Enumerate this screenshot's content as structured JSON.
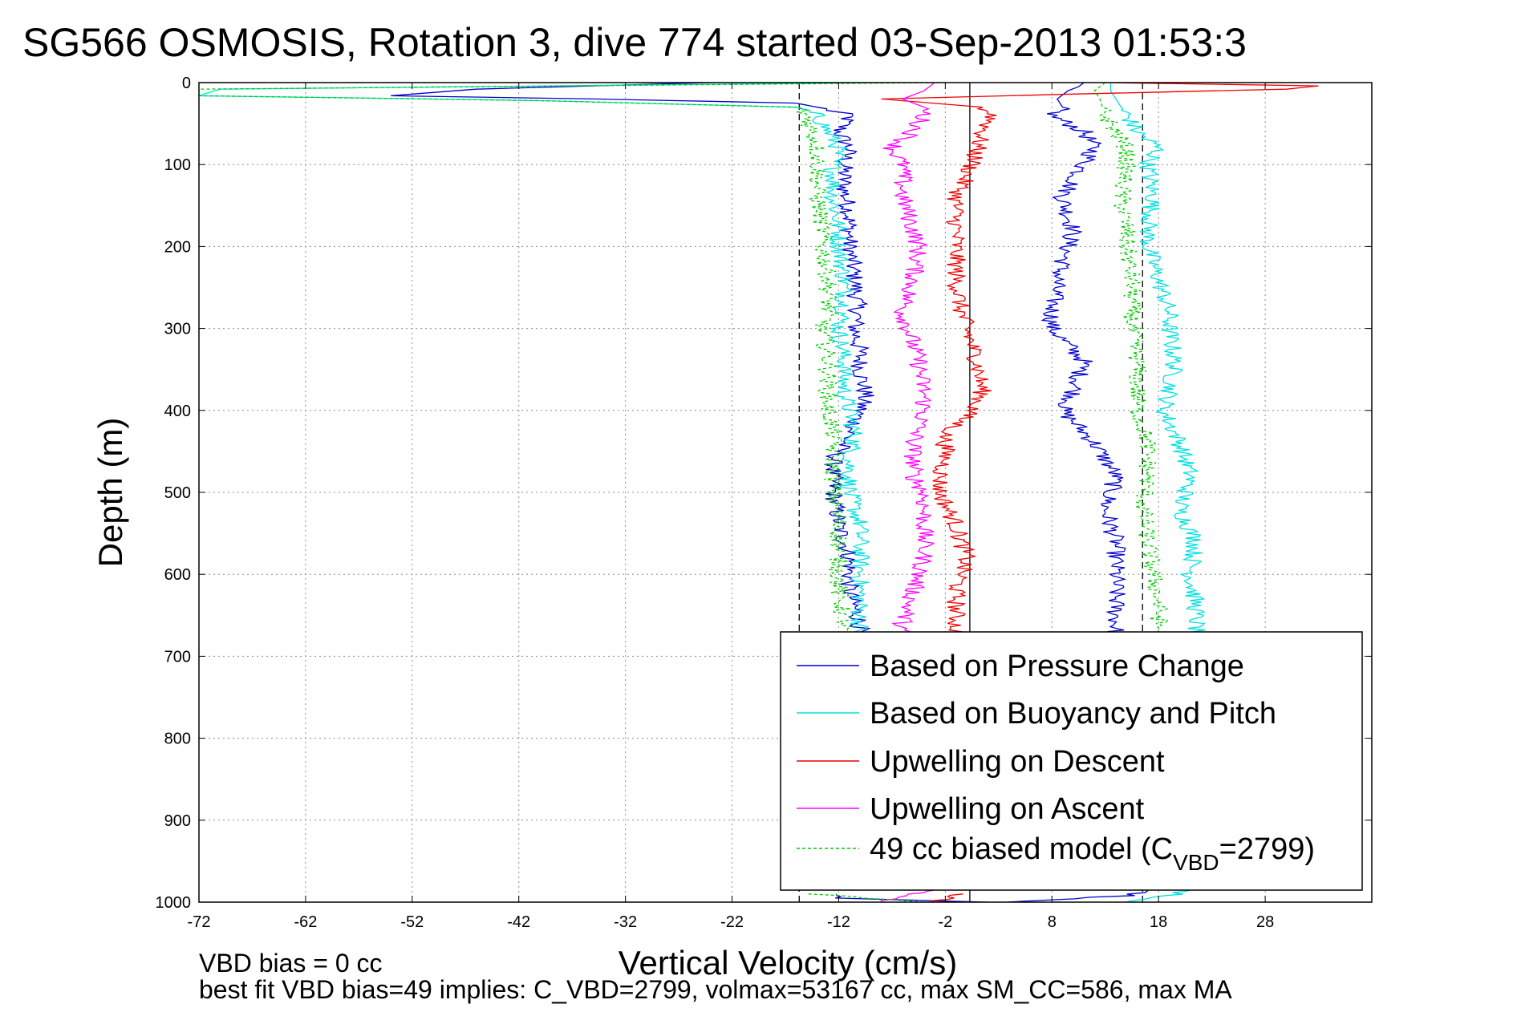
{
  "chart_data": {
    "type": "line",
    "title": "SG566 OSMOSIS, Rotation 3, dive 774 started 03-Sep-2013 01:53:3",
    "xlabel": "Vertical Velocity (cm/s)",
    "ylabel": "Depth (m)",
    "xlim": [
      -72,
      38
    ],
    "ylim": [
      0,
      1000
    ],
    "y_reversed": true,
    "xticks": [
      -72,
      -62,
      -52,
      -42,
      -32,
      -22,
      -12,
      -2,
      8,
      18,
      28
    ],
    "yticks": [
      0,
      100,
      200,
      300,
      400,
      500,
      600,
      700,
      800,
      900,
      1000
    ],
    "grid": true,
    "legend_position": "lower-right",
    "reference_lines": [
      {
        "x": -15.7,
        "style": "dashed",
        "color": "#000000"
      },
      {
        "x": 0.3,
        "style": "solid",
        "color": "#000000"
      },
      {
        "x": 16.5,
        "style": "dashed",
        "color": "#000000"
      }
    ],
    "series": [
      {
        "name": "Based on Pressure Change",
        "color": "#0000cc",
        "style": "solid",
        "segments": [
          {
            "depth": [
              0,
              8,
              16,
              20,
              25,
              30,
              40,
              60,
              80,
              100,
              130,
              160,
              200,
              240,
              280,
              300,
              330,
              350,
              380,
              400,
              430,
              460,
              500,
              540,
              580,
              620,
              660,
              680
            ],
            "values": [
              -24,
              -46,
              -54,
              -35,
              -16,
              -14,
              -11,
              -12,
              -11,
              -11.5,
              -11.5,
              -11,
              -11,
              -10.5,
              -10.2,
              -10.5,
              -10,
              -10,
              -9.5,
              -10,
              -11,
              -12.5,
              -12.5,
              -12,
              -11,
              -11,
              -10,
              -10
            ]
          },
          {
            "depth": [
              0,
              5,
              10,
              20,
              30,
              40,
              60,
              80,
              100,
              140,
              180,
              200,
              240,
              280,
              300,
              340,
              380,
              400,
              440,
              480,
              520,
              560,
              600,
              640,
              680
            ],
            "values": [
              11,
              10.5,
              9.5,
              8.5,
              9,
              8,
              11,
              12,
              11,
              9,
              10,
              9.5,
              8.5,
              8,
              8,
              11,
              10,
              9,
              12,
              14,
              13,
              14,
              14,
              14,
              14
            ]
          },
          {
            "depth": [
              990,
              995,
              1000
            ],
            "values": [
              -13,
              -12,
              2
            ]
          },
          {
            "depth": [
              1000,
              992,
              985
            ],
            "values": [
              4,
              15,
              17
            ]
          }
        ]
      },
      {
        "name": "Based on Buoyancy and Pitch",
        "color": "#00e0e0",
        "style": "solid",
        "segments": [
          {
            "depth": [
              0,
              8,
              16,
              22,
              30,
              40,
              60,
              80,
              100,
              140,
              180,
              200,
              240,
              280,
              300,
              340,
              380,
              400,
              430,
              460,
              500,
              540,
              580,
              620,
              660,
              680
            ],
            "values": [
              -8,
              -70,
              -72,
              -40,
              -16,
              -14,
              -13,
              -12,
              -12.5,
              -12.5,
              -12,
              -12,
              -11.5,
              -11.5,
              -12,
              -11.5,
              -11.5,
              -11,
              -10.5,
              -11,
              -11,
              -10,
              -10,
              -10,
              -10,
              -10
            ]
          },
          {
            "depth": [
              0,
              10,
              20,
              40,
              60,
              80,
              100,
              140,
              180,
              200,
              240,
              280,
              300,
              340,
              380,
              400,
              440,
              480,
              520,
              560,
              600,
              640,
              680
            ],
            "values": [
              13.5,
              13.5,
              14,
              15,
              16,
              18,
              17,
              17.5,
              17,
              17,
              18,
              19,
              19,
              19.5,
              19,
              18.5,
              20,
              21,
              20,
              21.5,
              21,
              21.5,
              21.5
            ]
          },
          {
            "depth": [
              1000,
              992,
              985
            ],
            "values": [
              14,
              19,
              21
            ]
          }
        ]
      },
      {
        "name": "Upwelling on Descent",
        "color": "#ee0000",
        "style": "solid",
        "segments": [
          {
            "depth": [
              0,
              4,
              8,
              14,
              20,
              30,
              40,
              60,
              80,
              100,
              140,
              180,
              200,
              240,
              280,
              300,
              340,
              380,
              400,
              430,
              460,
              480,
              500,
              540,
              580,
              620,
              660,
              680
            ],
            "values": [
              13,
              33,
              30,
              10,
              -8,
              1.5,
              2.5,
              1.5,
              1,
              0.5,
              -1,
              -1,
              -1,
              -1,
              -0.5,
              0,
              1,
              1.5,
              0.5,
              -2,
              -2,
              -2.5,
              -2.5,
              -1,
              0,
              -1,
              -1,
              -1
            ]
          },
          {
            "depth": [
              990,
              995,
              1000
            ],
            "values": [
              -1,
              -2,
              -3
            ]
          }
        ]
      },
      {
        "name": "Upwelling on Ascent",
        "color": "#ff00ff",
        "style": "solid",
        "segments": [
          {
            "depth": [
              0,
              10,
              20,
              30,
              40,
              60,
              80,
              100,
              140,
              180,
              200,
              240,
              280,
              300,
              340,
              380,
              400,
              440,
              480,
              500,
              540,
              580,
              620,
              660,
              680
            ],
            "values": [
              -3,
              -4,
              -6,
              -4,
              -4,
              -5,
              -7,
              -6,
              -6,
              -5,
              -4.5,
              -5,
              -6,
              -5.5,
              -4.5,
              -4,
              -4,
              -5,
              -5,
              -4,
              -4,
              -4,
              -5,
              -6,
              -6
            ]
          },
          {
            "depth": [
              985,
              992,
              1000
            ],
            "values": [
              -3,
              -6,
              -8
            ]
          }
        ]
      },
      {
        "name": "49 cc biased model (C_VBD=2799)",
        "color": "#00cc00",
        "style": "dashed",
        "segments": [
          {
            "depth": [
              0,
              8,
              16,
              22,
              30,
              40,
              60,
              80,
              100,
              140,
              180,
              200,
              240,
              280,
              300,
              340,
              380,
              400,
              430,
              460,
              500,
              540,
              580,
              620,
              660,
              680
            ],
            "values": [
              -2,
              -72,
              -72,
              -40,
              -16,
              -15,
              -14.5,
              -14,
              -14,
              -14,
              -13.5,
              -13.5,
              -13,
              -13,
              -13.5,
              -13,
              -13,
              -13,
              -12.5,
              -12.5,
              -12.5,
              -12,
              -12,
              -12,
              -11.5,
              -11.5
            ]
          },
          {
            "depth": [
              0,
              10,
              20,
              40,
              60,
              80,
              100,
              140,
              180,
              200,
              240,
              280,
              300,
              340,
              380,
              400,
              440,
              480,
              520,
              560,
              600,
              640,
              680
            ],
            "values": [
              13,
              12,
              12.5,
              13,
              14,
              15,
              15,
              14.5,
              15,
              15,
              15.5,
              15.5,
              15.5,
              16,
              16,
              16,
              17,
              17,
              16.5,
              17,
              17.5,
              18,
              18
            ]
          },
          {
            "depth": [
              990,
              995,
              1000
            ],
            "values": [
              -14,
              -10,
              -4
            ]
          }
        ]
      }
    ],
    "legend": {
      "entries": [
        {
          "label": "Based on Pressure Change",
          "color": "#0000cc",
          "style": "solid"
        },
        {
          "label": "Based on Buoyancy and Pitch",
          "color": "#00e0e0",
          "style": "solid"
        },
        {
          "label": "Upwelling on Descent",
          "color": "#ee0000",
          "style": "solid"
        },
        {
          "label": "Upwelling on Ascent",
          "color": "#ff00ff",
          "style": "solid"
        },
        {
          "label_prefix": "49 cc biased model (C",
          "label_sub": "VBD",
          "label_suffix": "=2799)",
          "color": "#00cc00",
          "style": "dashed"
        }
      ]
    },
    "annotations": {
      "bias_line": "VBD bias = 0 cc",
      "fit_line": "best fit VBD bias=49 implies: C_VBD=2799, volmax=53167 cc, max SM_CC=586, max MA"
    }
  }
}
